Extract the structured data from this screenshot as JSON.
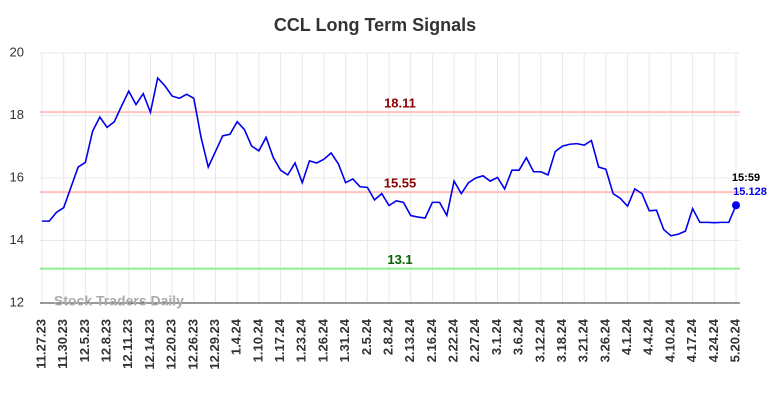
{
  "chart_data": {
    "type": "line",
    "title": "CCL Long Term Signals",
    "watermark": "Stock Traders Daily",
    "categories": [
      "11.27.23",
      null,
      null,
      "11.30.23",
      null,
      null,
      "12.5.23",
      null,
      null,
      "12.8.23",
      null,
      null,
      "12.11.23",
      null,
      null,
      "12.14.23",
      null,
      null,
      "12.20.23",
      null,
      null,
      "12.26.23",
      null,
      null,
      "12.29.23",
      null,
      null,
      "1.4.24",
      null,
      null,
      "1.10.24",
      null,
      null,
      "1.17.24",
      null,
      null,
      "1.23.24",
      null,
      null,
      "1.26.24",
      null,
      null,
      "1.31.24",
      null,
      null,
      "2.5.24",
      null,
      null,
      "2.8.24",
      null,
      null,
      "2.13.24",
      null,
      null,
      "2.16.24",
      null,
      null,
      "2.22.24",
      null,
      null,
      "2.27.24",
      null,
      null,
      "3.1.24",
      null,
      null,
      "3.6.24",
      null,
      null,
      "3.12.24",
      null,
      null,
      "3.18.24",
      null,
      null,
      "3.21.24",
      null,
      null,
      "3.26.24",
      null,
      null,
      "4.1.24",
      null,
      null,
      "4.4.24",
      null,
      null,
      "4.10.24",
      null,
      null,
      "4.17.24",
      null,
      null,
      "4.24.24",
      null,
      null,
      "5.20.24"
    ],
    "values": [
      14.62,
      14.62,
      14.9,
      15.05,
      15.7,
      16.35,
      16.5,
      17.5,
      17.95,
      17.62,
      17.8,
      18.3,
      18.78,
      18.35,
      18.7,
      18.1,
      19.2,
      18.95,
      18.62,
      18.55,
      18.68,
      18.55,
      17.3,
      16.35,
      16.85,
      17.35,
      17.4,
      17.8,
      17.55,
      17.02,
      16.87,
      17.3,
      16.65,
      16.25,
      16.1,
      16.48,
      15.85,
      16.55,
      16.48,
      16.6,
      16.8,
      16.45,
      15.85,
      15.97,
      15.72,
      15.7,
      15.3,
      15.5,
      15.12,
      15.27,
      15.22,
      14.8,
      14.75,
      14.72,
      15.22,
      15.22,
      14.8,
      15.9,
      15.5,
      15.85,
      16.0,
      16.07,
      15.9,
      16.02,
      15.65,
      16.25,
      16.25,
      16.65,
      16.2,
      16.2,
      16.1,
      16.85,
      17.02,
      17.08,
      17.1,
      17.05,
      17.2,
      16.35,
      16.28,
      15.5,
      15.35,
      15.1,
      15.65,
      15.5,
      14.95,
      14.97,
      14.35,
      14.15,
      14.2,
      14.3,
      15.02,
      14.58,
      14.58,
      14.57,
      14.58,
      14.58,
      15.128
    ],
    "color": "#0000ee",
    "last_point_time": "15:59",
    "reference_lines": [
      {
        "value": 18.11,
        "color": "#ffc0c0",
        "label_color": "#8b0000"
      },
      {
        "value": 15.55,
        "color": "#ffc0c0",
        "label_color": "#8b0000"
      },
      {
        "value": 13.1,
        "color": "#90ee90",
        "label_color": "#006400"
      }
    ],
    "ylim": [
      12,
      20
    ],
    "yticks": [
      12,
      14,
      16,
      18,
      20
    ],
    "grid": true
  }
}
